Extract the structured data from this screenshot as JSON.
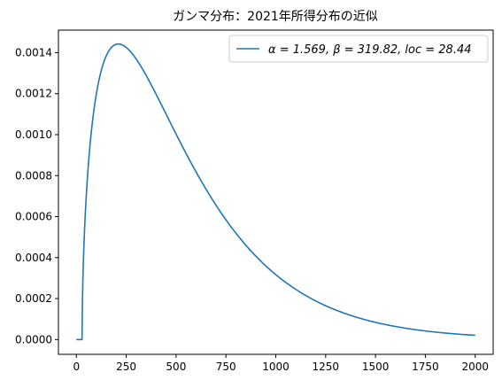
{
  "chart_data": {
    "type": "line",
    "title": "ガンマ分布：2021年所得分布の近似",
    "xlabel": "",
    "ylabel": "",
    "xlim": [
      -90,
      2090
    ],
    "ylim": [
      -7.21e-05,
      0.00151
    ],
    "x_ticks": [
      0,
      250,
      500,
      750,
      1000,
      1250,
      1500,
      1750,
      2000
    ],
    "x_tick_labels": [
      "0",
      "250",
      "500",
      "750",
      "1000",
      "1250",
      "1500",
      "1750",
      "2000"
    ],
    "y_ticks": [
      0,
      0.0002,
      0.0004,
      0.0006,
      0.0008,
      0.001,
      0.0012,
      0.0014
    ],
    "y_tick_labels": [
      "0.0000",
      "0.0002",
      "0.0004",
      "0.0006",
      "0.0008",
      "0.0010",
      "0.0012",
      "0.0014"
    ],
    "grid": false,
    "legend_position": "top-right",
    "colors": {
      "series": "#1f77b4",
      "axes": "#000000",
      "background": "#ffffff"
    },
    "series": [
      {
        "name": "α = 1.569,  β = 319.82,  loc = 28.44",
        "distribution": "gamma",
        "params": {
          "alpha": 1.569,
          "beta": 319.82,
          "loc": 28.44
        },
        "x_range": [
          0,
          2000
        ]
      }
    ]
  }
}
